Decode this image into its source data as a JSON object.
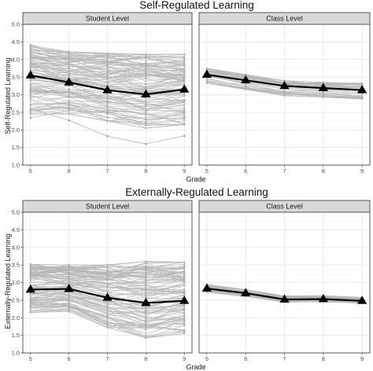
{
  "chart_data": [
    {
      "type": "line",
      "title": "Self-Regulated Learning",
      "ylabel": "Self-Regulated Learning",
      "xlabel": "Grade",
      "x": [
        5,
        6,
        7,
        8,
        9
      ],
      "ylim": [
        1.0,
        5.0
      ],
      "yticks": [
        "1.0",
        "1.5",
        "2.0",
        "2.5",
        "3.0",
        "3.5",
        "4.0",
        "4.5",
        "5.0"
      ],
      "xticks": [
        "5",
        "6",
        "7",
        "8",
        "9"
      ],
      "grid": true,
      "panels": [
        {
          "label": "Student Level",
          "mean": [
            3.55,
            3.35,
            3.13,
            3.01,
            3.15
          ],
          "individual_band": {
            "upper": [
              4.42,
              4.22,
              4.18,
              4.15,
              4.15
            ],
            "lower": [
              2.45,
              2.45,
              2.25,
              2.05,
              2.15
            ]
          },
          "outliers": [
            [
              2.6,
              2.27,
              1.82,
              1.6,
              1.83
            ],
            [
              2.35,
              2.55,
              2.5,
              2.3,
              2.35
            ]
          ]
        },
        {
          "label": "Class Level",
          "mean": [
            3.57,
            3.41,
            3.25,
            3.19,
            3.13
          ],
          "individual_band": {
            "upper": [
              3.75,
              3.58,
              3.4,
              3.35,
              3.33
            ],
            "lower": [
              3.33,
              3.15,
              2.97,
              2.93,
              2.88
            ]
          },
          "outliers": []
        }
      ]
    },
    {
      "type": "line",
      "title": "Externally-Regulated Learning",
      "ylabel": "Externally-Regulated Learning",
      "xlabel": "Grade",
      "x": [
        5,
        6,
        7,
        8,
        9
      ],
      "ylim": [
        1.0,
        5.0
      ],
      "yticks": [
        "1.0",
        "1.5",
        "2.0",
        "2.5",
        "3.0",
        "3.5",
        "4.0",
        "4.5",
        "5.0"
      ],
      "xticks": [
        "5",
        "6",
        "7",
        "8",
        "9"
      ],
      "grid": true,
      "panels": [
        {
          "label": "Student Level",
          "mean": [
            2.8,
            2.82,
            2.57,
            2.42,
            2.48
          ],
          "individual_band": {
            "upper": [
              3.52,
              3.5,
              3.5,
              3.6,
              3.58
            ],
            "lower": [
              2.15,
              2.18,
              1.72,
              1.43,
              1.55
            ]
          },
          "outliers": []
        },
        {
          "label": "Class Level",
          "mean": [
            2.83,
            2.7,
            2.52,
            2.53,
            2.48
          ],
          "individual_band": {
            "upper": [
              2.95,
              2.8,
              2.62,
              2.63,
              2.58
            ],
            "lower": [
              2.72,
              2.6,
              2.44,
              2.45,
              2.41
            ]
          },
          "outliers": []
        }
      ]
    }
  ]
}
